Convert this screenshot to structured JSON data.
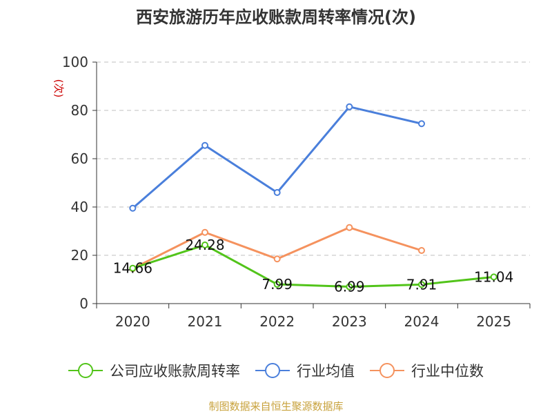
{
  "chart_data": {
    "type": "line",
    "title": "西安旅游历年应收账款周转率情况(次)",
    "ylabel": "(次)",
    "ylabel_color": "#cc0000",
    "categories": [
      "2020",
      "2021",
      "2022",
      "2023",
      "2024",
      "2025"
    ],
    "yticks": [
      "0",
      "20",
      "40",
      "60",
      "80",
      "100"
    ],
    "ylim": [
      0,
      100
    ],
    "grid": true,
    "legend_position": "bottom",
    "series": [
      {
        "name": "公司应收账款周转率",
        "color": "#52c41a",
        "values": [
          14.66,
          24.28,
          7.99,
          6.99,
          7.91,
          11.04
        ],
        "labels": [
          "14.66",
          "24.28",
          "7.99",
          "6.99",
          "7.91",
          "11.04"
        ]
      },
      {
        "name": "行业均值",
        "color": "#4a7fdb",
        "values": [
          39.5,
          65.5,
          46,
          81.5,
          74.5,
          null
        ]
      },
      {
        "name": "行业中位数",
        "color": "#f5925e",
        "values": [
          14.5,
          29.5,
          18.5,
          31.5,
          22,
          null
        ]
      }
    ],
    "source": "制图数据来自恒生聚源数据库",
    "source_color": "#c8a23c"
  }
}
